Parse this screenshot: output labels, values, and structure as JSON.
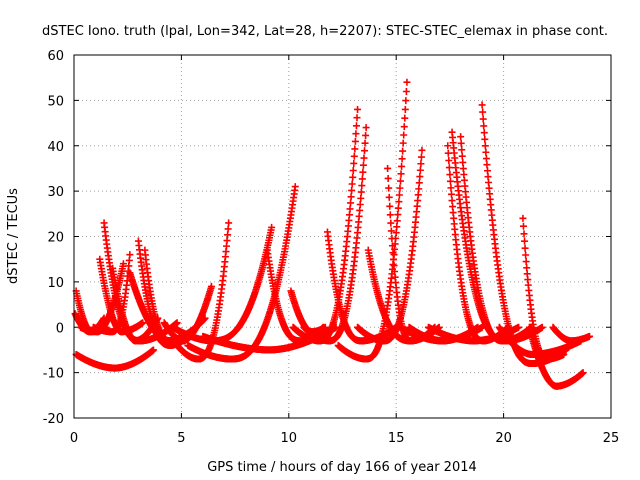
{
  "chart_data": {
    "type": "scatter",
    "title": "dSTEC Iono. truth (lpal, Lon=342, Lat=28, h=2207): STEC-STEC_elemax in phase cont.",
    "xlabel": "GPS time / hours of day 166 of year 2014",
    "ylabel": "dSTEC  / TECUs",
    "xlim": [
      0,
      25
    ],
    "ylim": [
      -20,
      60
    ],
    "xticks": [
      0,
      5,
      10,
      15,
      20,
      25
    ],
    "yticks": [
      -20,
      -10,
      0,
      10,
      20,
      30,
      40,
      50,
      60
    ],
    "grid": true,
    "legend": "none",
    "marker": "+",
    "color": "#ff0000",
    "arcs": [
      {
        "t0": 0.05,
        "t1": 1.4,
        "tmax": 0.1,
        "left": 0,
        "right": 1,
        "cut_left": 3,
        "cut_right": 2
      },
      {
        "t0": 0.1,
        "t1": 1.5,
        "tmax": 0.4,
        "left": 0,
        "right": 0,
        "cut_left": 8,
        "cut_right": 0
      },
      {
        "t0": 0.1,
        "t1": 3.7,
        "tmax": 3.5,
        "left": 0,
        "right": 0,
        "cut_left": -6,
        "cut_right": -5
      },
      {
        "t0": 0.3,
        "t1": 2.3,
        "tmax": 2.3,
        "left": 0,
        "right": 0,
        "cut_left": 0,
        "cut_right": 14
      },
      {
        "t0": 1.2,
        "t1": 3.2,
        "tmax": 1.5,
        "left": 0,
        "right": 0,
        "cut_left": 15,
        "cut_right": 1
      },
      {
        "t0": 1.4,
        "t1": 4.8,
        "tmax": 1.5,
        "left": 0,
        "right": 0,
        "cut_left": 23,
        "cut_right": 1
      },
      {
        "t0": 0.9,
        "t1": 2.6,
        "tmax": 2.55,
        "left": 0,
        "right": 0,
        "cut_left": 0,
        "cut_right": 16
      },
      {
        "t0": 1.8,
        "t1": 3.9,
        "tmax": 2.0,
        "left": 0,
        "right": 0,
        "cut_left": 13,
        "cut_right": 2
      },
      {
        "t0": 3.0,
        "t1": 5.5,
        "tmax": 3.0,
        "left": 0,
        "right": 0,
        "cut_left": 19,
        "cut_right": -1
      },
      {
        "t0": 2.6,
        "t1": 6.1,
        "tmax": 3.4,
        "left": 0,
        "right": 0,
        "cut_left": 12,
        "cut_right": 2
      },
      {
        "t0": 3.3,
        "t1": 5.7,
        "tmax": 4.0,
        "left": 0,
        "right": 0,
        "cut_left": 17,
        "cut_right": 0
      },
      {
        "t0": 4.2,
        "t1": 6.4,
        "tmax": 6.4,
        "left": 0,
        "right": 0,
        "cut_left": 1,
        "cut_right": 9
      },
      {
        "t0": 4.8,
        "t1": 7.2,
        "tmax": 7.2,
        "left": 0,
        "right": 0,
        "cut_left": -4,
        "cut_right": 23
      },
      {
        "t0": 5.3,
        "t1": 10.3,
        "tmax": 10.3,
        "left": 0,
        "right": 0,
        "cut_left": -4,
        "cut_right": 31
      },
      {
        "t0": 4.6,
        "t1": 9.2,
        "tmax": 9.2,
        "left": 0,
        "right": 0,
        "cut_left": 0,
        "cut_right": 22
      },
      {
        "t0": 9.0,
        "t1": 11.6,
        "tmax": 9.0,
        "left": 0,
        "right": 0,
        "cut_left": 17,
        "cut_right": 0
      },
      {
        "t0": 6.0,
        "t1": 12.2,
        "tmax": 8.6,
        "left": 0,
        "right": 0,
        "cut_left": -2,
        "cut_right": 0
      },
      {
        "t0": 10.1,
        "t1": 11.7,
        "tmax": 10.1,
        "left": 0,
        "right": 0,
        "cut_left": 8,
        "cut_right": 0
      },
      {
        "t0": 10.2,
        "t1": 13.2,
        "tmax": 13.2,
        "left": 0,
        "right": 0,
        "cut_left": 0,
        "cut_right": 48
      },
      {
        "t0": 10.7,
        "t1": 13.6,
        "tmax": 13.6,
        "left": 0,
        "right": 0,
        "cut_left": 0,
        "cut_right": 44
      },
      {
        "t0": 11.8,
        "t1": 15.0,
        "tmax": 11.9,
        "left": 0,
        "right": 0,
        "cut_left": 21,
        "cut_right": 0
      },
      {
        "t0": 12.3,
        "t1": 15.5,
        "tmax": 15.5,
        "left": 0,
        "right": 0,
        "cut_left": -4,
        "cut_right": 54
      },
      {
        "t0": 13.2,
        "t1": 16.2,
        "tmax": 16.2,
        "left": 0,
        "right": 0,
        "cut_left": 0,
        "cut_right": 39
      },
      {
        "t0": 13.7,
        "t1": 17.0,
        "tmax": 13.7,
        "left": 0,
        "right": 0,
        "cut_left": 17,
        "cut_right": 0
      },
      {
        "t0": 14.6,
        "t1": 16.8,
        "tmax": 14.8,
        "left": 0,
        "right": 0,
        "cut_left": 35,
        "cut_right": 0
      },
      {
        "t0": 15.2,
        "t1": 19.0,
        "tmax": 17.7,
        "left": 0,
        "right": 0,
        "cut_left": 0,
        "cut_right": 0
      },
      {
        "t0": 15.6,
        "t1": 18.8,
        "tmax": 17.8,
        "left": 0,
        "right": 0,
        "cut_left": 0,
        "cut_right": 0
      },
      {
        "t0": 17.4,
        "t1": 20.2,
        "tmax": 17.4,
        "left": 0,
        "right": 0,
        "cut_left": 40,
        "cut_right": 0
      },
      {
        "t0": 17.6,
        "t1": 21.8,
        "tmax": 17.6,
        "left": 0,
        "right": 0,
        "cut_left": 43,
        "cut_right": 0
      },
      {
        "t0": 18.0,
        "t1": 21.3,
        "tmax": 18.0,
        "left": 0,
        "right": 0,
        "cut_left": 42,
        "cut_right": 0
      },
      {
        "t0": 19.0,
        "t1": 22.9,
        "tmax": 19.0,
        "left": 0,
        "right": 0,
        "cut_left": 49,
        "cut_right": -5
      },
      {
        "t0": 16.5,
        "t1": 20.7,
        "tmax": 20.0,
        "left": 0,
        "right": 0,
        "cut_left": 0,
        "cut_right": 0
      },
      {
        "t0": 20.9,
        "t1": 22.8,
        "tmax": 20.9,
        "left": 0,
        "right": 0,
        "cut_left": 24,
        "cut_right": -6
      },
      {
        "t0": 21.2,
        "t1": 23.7,
        "tmax": 22.9,
        "left": 0,
        "right": 0,
        "cut_left": 0,
        "cut_right": -10
      },
      {
        "t0": 22.3,
        "t1": 24.0,
        "tmax": 22.8,
        "left": 0,
        "right": 0,
        "cut_left": 0,
        "cut_right": -2
      },
      {
        "t0": 19.8,
        "t1": 23.6,
        "tmax": 23.6,
        "left": 0,
        "right": 0,
        "cut_left": 0,
        "cut_right": -3
      }
    ]
  }
}
